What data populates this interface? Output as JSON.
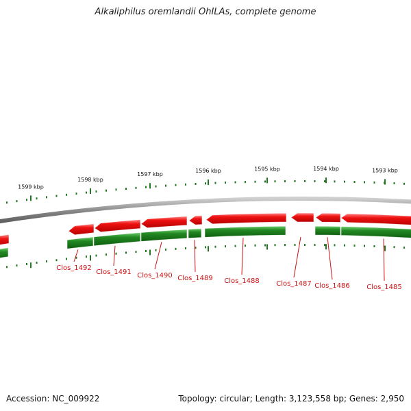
{
  "title": "Alkaliphilus oremlandii OhILAs, complete genome",
  "footer": {
    "accession": "Accession: NC_009922",
    "summary": "Topology: circular; Length: 3,123,558 bp; Genes: 2,950"
  },
  "colors": {
    "forward": "#ee1111",
    "reverse": "#228822",
    "backbone": "#888888",
    "label": "#cc1111",
    "ticks": "#227722"
  },
  "chart_data": {
    "type": "genome-map",
    "scale_labels": [
      {
        "kbp": 1599,
        "label": "1599 kbp"
      },
      {
        "kbp": 1598,
        "label": "1598 kbp"
      },
      {
        "kbp": 1597,
        "label": "1597 kbp"
      },
      {
        "kbp": 1596,
        "label": "1596 kbp"
      },
      {
        "kbp": 1595,
        "label": "1595 kbp"
      },
      {
        "kbp": 1594,
        "label": "1594 kbp"
      },
      {
        "kbp": 1593,
        "label": "1593 kbp"
      }
    ],
    "genes": [
      {
        "name": "Clos_1492"
      },
      {
        "name": "Clos_1491"
      },
      {
        "name": "Clos_1490"
      },
      {
        "name": "Clos_1489"
      },
      {
        "name": "Clos_1488"
      },
      {
        "name": "Clos_1487"
      },
      {
        "name": "Clos_1486"
      },
      {
        "name": "Clos_1485"
      }
    ]
  }
}
